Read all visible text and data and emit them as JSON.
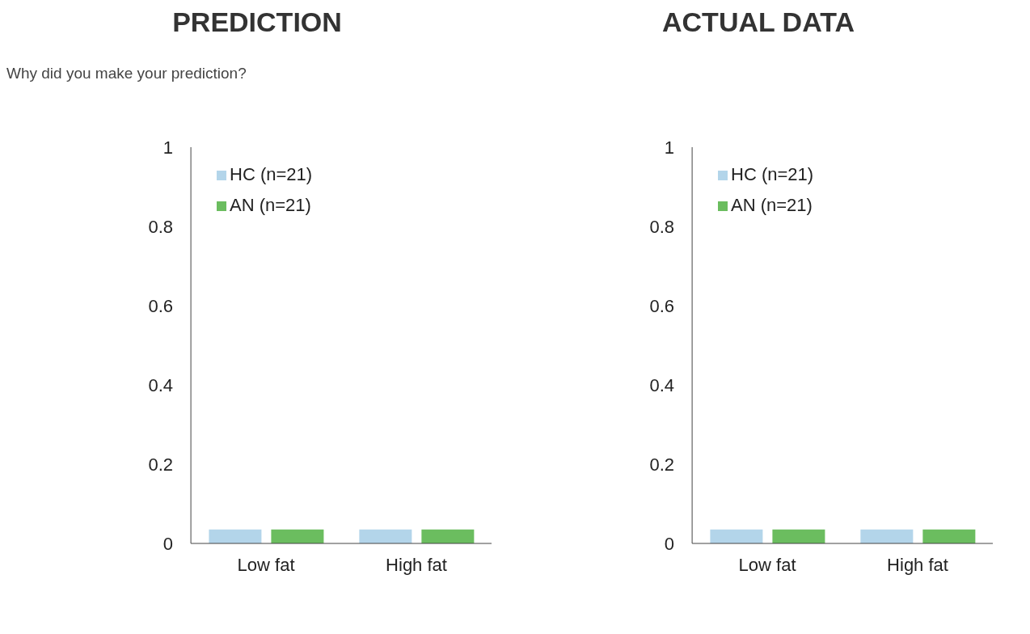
{
  "chart_data": [
    {
      "type": "bar",
      "title": "PREDICTION",
      "annotations": [
        "Why did you make your prediction?"
      ],
      "categories": [
        "Low fat",
        "High fat"
      ],
      "series": [
        {
          "name": "HC (n=21)",
          "color": "#b3d5ea",
          "values": [
            0.035,
            0.035
          ]
        },
        {
          "name": "AN (n=21)",
          "color": "#6bbd5f",
          "values": [
            0.035,
            0.035
          ]
        }
      ],
      "ylim": [
        0,
        1
      ],
      "yticks": [
        0,
        0.2,
        0.4,
        0.6,
        0.8,
        1
      ],
      "grid": false,
      "legend": "top left"
    },
    {
      "type": "bar",
      "title": "ACTUAL DATA",
      "categories": [
        "Low fat",
        "High fat"
      ],
      "series": [
        {
          "name": "HC (n=21)",
          "color": "#b3d5ea",
          "values": [
            0.035,
            0.035
          ]
        },
        {
          "name": "AN (n=21)",
          "color": "#6bbd5f",
          "values": [
            0.035,
            0.035
          ]
        }
      ],
      "ylim": [
        0,
        1
      ],
      "yticks": [
        0,
        0.2,
        0.4,
        0.6,
        0.8,
        1
      ],
      "grid": false,
      "legend": "top left"
    }
  ]
}
